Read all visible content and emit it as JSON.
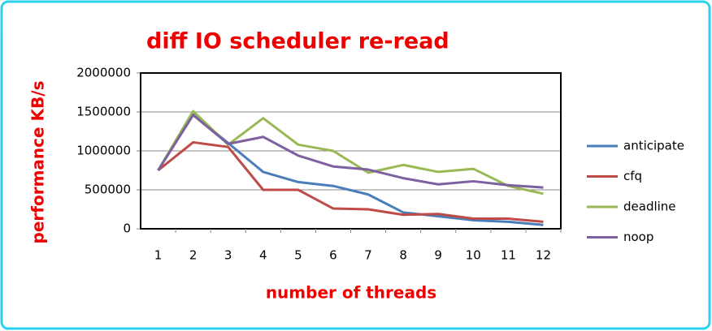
{
  "chart_data": {
    "type": "line",
    "title": "diff IO scheduler re-read",
    "x_label": "number of threads",
    "y_label": "performance KB/s",
    "categories": [
      "1",
      "2",
      "3",
      "4",
      "5",
      "6",
      "7",
      "8",
      "9",
      "10",
      "11",
      "12"
    ],
    "series": [
      {
        "name": "anticipate",
        "color": "#4a7ebb",
        "values": [
          750000,
          1470000,
          1100000,
          730000,
          600000,
          550000,
          440000,
          210000,
          160000,
          110000,
          90000,
          50000
        ]
      },
      {
        "name": "cfq",
        "color": "#be4b48",
        "values": [
          750000,
          1110000,
          1050000,
          500000,
          500000,
          260000,
          250000,
          180000,
          190000,
          130000,
          130000,
          90000
        ]
      },
      {
        "name": "deadline",
        "color": "#98b954",
        "values": [
          750000,
          1510000,
          1080000,
          1420000,
          1080000,
          1000000,
          720000,
          820000,
          730000,
          770000,
          550000,
          450000
        ]
      },
      {
        "name": "noop",
        "color": "#7d60a0",
        "values": [
          750000,
          1460000,
          1090000,
          1180000,
          940000,
          800000,
          760000,
          650000,
          570000,
          610000,
          560000,
          530000
        ]
      }
    ],
    "ylim": [
      0,
      2000000
    ],
    "yticks": [
      0,
      500000,
      1000000,
      1500000,
      2000000
    ],
    "grid": true,
    "legend": "right"
  }
}
